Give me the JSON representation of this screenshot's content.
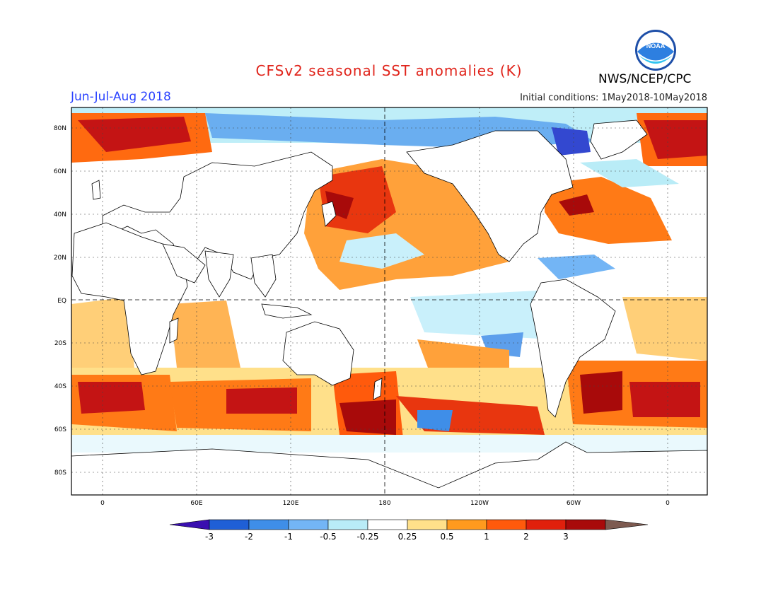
{
  "title": "CFSv2 seasonal SST anomalies (K)",
  "period": "Jun-Jul-Aug 2018",
  "initial_conditions": "Initial conditions: 1May2018-10May2018",
  "agency": "NWS/NCEP/CPC",
  "logo_text": "NOAA",
  "map": {
    "projection": "equirectangular",
    "lon_range": [
      -20,
      340
    ],
    "lat_range": [
      -90,
      90
    ],
    "lat_ticks": [
      "80N",
      "60N",
      "40N",
      "20N",
      "EQ",
      "20S",
      "40S",
      "60S",
      "80S"
    ],
    "lon_ticks": [
      "0",
      "60E",
      "120E",
      "180",
      "120W",
      "60W",
      "0"
    ],
    "grid": "dotted"
  },
  "colorbar": {
    "labels": [
      "-3",
      "-2",
      "-1",
      "-0.5",
      "-0.25",
      "0.25",
      "0.5",
      "1",
      "2",
      "3"
    ],
    "colors": [
      "#3a0fb0",
      "#1f5fd6",
      "#3f8ee8",
      "#73b5f5",
      "#b9ecf7",
      "#ffffff",
      "#ffe08a",
      "#ff9a1e",
      "#ff5a0c",
      "#e0200c",
      "#a80a0a",
      "#7d5a50"
    ]
  }
}
